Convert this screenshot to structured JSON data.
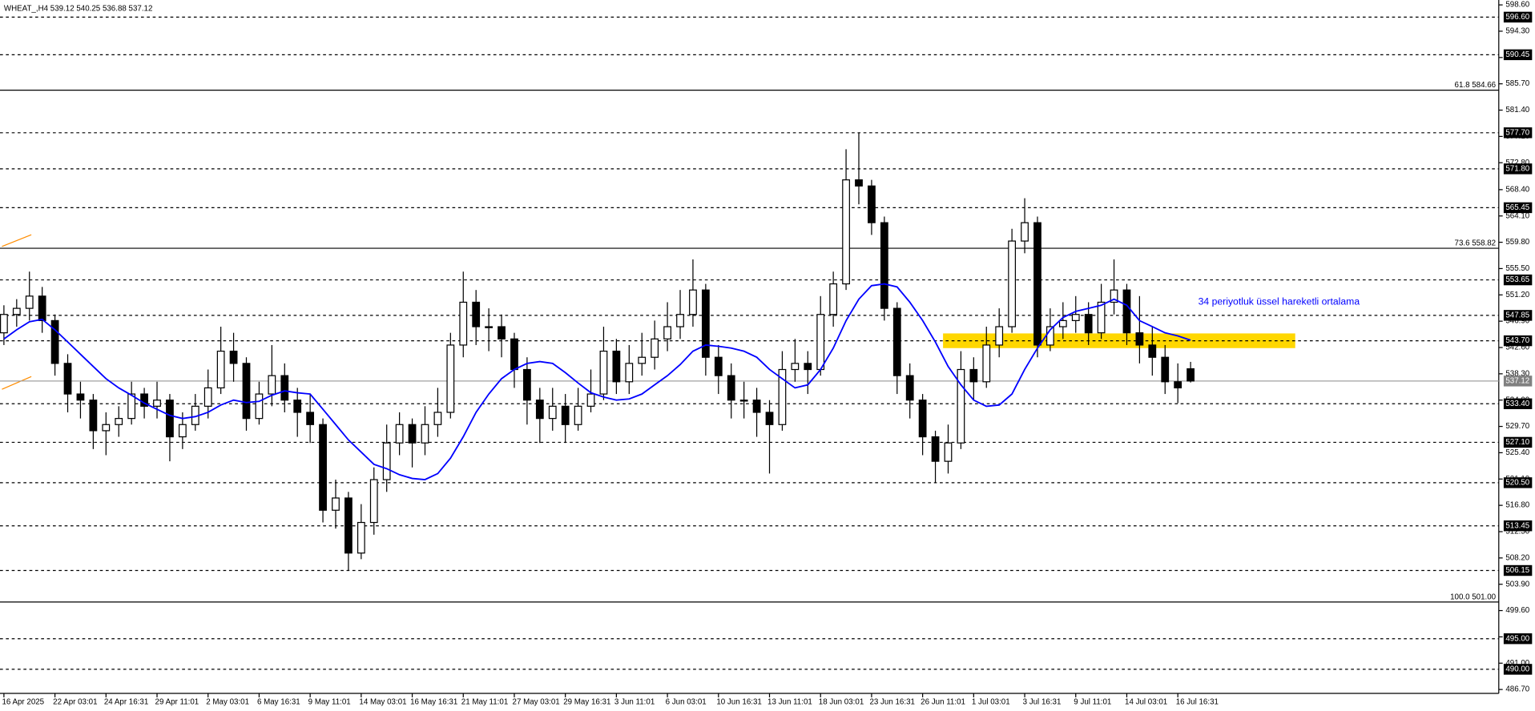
{
  "chart_data": {
    "type": "candlestick",
    "title": "WHEAT_,H4  539.12 540.25 536.88 537.12",
    "annotation": "34 periyotluk üssel hareketli ortalama",
    "xlim": [
      0,
      117
    ],
    "ylim": [
      486.7,
      598.6
    ],
    "xticks": [
      {
        "value": 0,
        "label": "16 Apr 2025"
      },
      {
        "value": 4,
        "label": "22 Apr 03:01"
      },
      {
        "value": 8,
        "label": "24 Apr 16:31"
      },
      {
        "value": 12,
        "label": "29 Apr 11:01"
      },
      {
        "value": 16,
        "label": "2 May 03:01"
      },
      {
        "value": 20,
        "label": "6 May 16:31"
      },
      {
        "value": 24,
        "label": "9 May 11:01"
      },
      {
        "value": 28,
        "label": "14 May 03:01"
      },
      {
        "value": 32,
        "label": "16 May 16:31"
      },
      {
        "value": 36,
        "label": "21 May 11:01"
      },
      {
        "value": 40,
        "label": "27 May 03:01"
      },
      {
        "value": 44,
        "label": "29 May 16:31"
      },
      {
        "value": 48,
        "label": "3 Jun 11:01"
      },
      {
        "value": 52,
        "label": "6 Jun 03:01"
      },
      {
        "value": 56,
        "label": "10 Jun 16:31"
      },
      {
        "value": 60,
        "label": "13 Jun 11:01"
      },
      {
        "value": 64,
        "label": "18 Jun 03:01"
      },
      {
        "value": 68,
        "label": "23 Jun 16:31"
      },
      {
        "value": 72,
        "label": "26 Jun 11:01"
      },
      {
        "value": 76,
        "label": "1 Jul 03:01"
      },
      {
        "value": 80,
        "label": "3 Jul 16:31"
      },
      {
        "value": 84,
        "label": "9 Jul 11:01"
      },
      {
        "value": 88,
        "label": "14 Jul 03:01"
      },
      {
        "value": 92,
        "label": "16 Jul 16:31"
      }
    ],
    "yticks": [
      {
        "value": 598.6,
        "label": "598.60"
      },
      {
        "value": 594.3,
        "label": "594.30"
      },
      {
        "value": 590.0,
        "label": "590.00"
      },
      {
        "value": 585.7,
        "label": "585.70"
      },
      {
        "value": 581.4,
        "label": "581.40"
      },
      {
        "value": 577.1,
        "label": "577.10"
      },
      {
        "value": 572.8,
        "label": "572.80"
      },
      {
        "value": 568.4,
        "label": "568.40"
      },
      {
        "value": 564.1,
        "label": "564.10"
      },
      {
        "value": 559.8,
        "label": "559.80"
      },
      {
        "value": 555.5,
        "label": "555.50"
      },
      {
        "value": 551.2,
        "label": "551.20"
      },
      {
        "value": 546.9,
        "label": "546.90"
      },
      {
        "value": 542.6,
        "label": "542.60"
      },
      {
        "value": 538.3,
        "label": "538.30"
      },
      {
        "value": 534.0,
        "label": "534.00"
      },
      {
        "value": 529.7,
        "label": "529.70"
      },
      {
        "value": 525.4,
        "label": "525.40"
      },
      {
        "value": 521.1,
        "label": "521.10"
      },
      {
        "value": 516.8,
        "label": "516.80"
      },
      {
        "value": 512.5,
        "label": "512.50"
      },
      {
        "value": 508.2,
        "label": "508.20"
      },
      {
        "value": 503.9,
        "label": "503.90"
      },
      {
        "value": 499.6,
        "label": "499.60"
      },
      {
        "value": 495.3,
        "label": "495.30"
      },
      {
        "value": 491.0,
        "label": "491.00"
      },
      {
        "value": 486.7,
        "label": "486.70"
      }
    ],
    "levels": [
      {
        "value": 596.6,
        "label": "596.60"
      },
      {
        "value": 590.45,
        "label": "590.45"
      },
      {
        "value": 577.7,
        "label": "577.70"
      },
      {
        "value": 571.8,
        "label": "571.80"
      },
      {
        "value": 565.45,
        "label": "565.45"
      },
      {
        "value": 553.65,
        "label": "553.65"
      },
      {
        "value": 547.85,
        "label": "547.85"
      },
      {
        "value": 543.7,
        "label": "543.70"
      },
      {
        "value": 533.4,
        "label": "533.40"
      },
      {
        "value": 527.1,
        "label": "527.10"
      },
      {
        "value": 520.5,
        "label": "520.50"
      },
      {
        "value": 513.45,
        "label": "513.45"
      },
      {
        "value": 506.15,
        "label": "506.15"
      },
      {
        "value": 495.0,
        "label": "495.00"
      },
      {
        "value": 490.0,
        "label": "490.00"
      }
    ],
    "fib_levels": [
      {
        "value": 584.66,
        "label": "61.8 584.66"
      },
      {
        "value": 558.82,
        "label": "73.6 558.82"
      },
      {
        "value": 501.0,
        "label": "100.0 501.00"
      }
    ],
    "last_price": {
      "value": 537.12,
      "label": "537.12"
    },
    "zone": {
      "color": "#ffd700",
      "y": [
        542.5,
        544.9
      ],
      "x": [
        73.6,
        101.2
      ]
    },
    "up_color": "#ffffff",
    "down_color": "#000000",
    "ohlc": [
      [
        545,
        549.5,
        543,
        548
      ],
      [
        548,
        550.5,
        546,
        549
      ],
      [
        549,
        555,
        547,
        551
      ],
      [
        551,
        552.5,
        545,
        547
      ],
      [
        547,
        548,
        538,
        540
      ],
      [
        540,
        541.5,
        532,
        535
      ],
      [
        535,
        537,
        531,
        534
      ],
      [
        534,
        535,
        526,
        529
      ],
      [
        529,
        532,
        525,
        530
      ],
      [
        530,
        533,
        528,
        531
      ],
      [
        531,
        537,
        530,
        535
      ],
      [
        535,
        536,
        531,
        533
      ],
      [
        533,
        537,
        531,
        534
      ],
      [
        534,
        535,
        524,
        528
      ],
      [
        528,
        532,
        526,
        530
      ],
      [
        530,
        535,
        529,
        533
      ],
      [
        533,
        539,
        531,
        536
      ],
      [
        536,
        546,
        535,
        542
      ],
      [
        542,
        545,
        537,
        540
      ],
      [
        540,
        541,
        529,
        531
      ],
      [
        531,
        537,
        530,
        535
      ],
      [
        535,
        543,
        533,
        538
      ],
      [
        538,
        540,
        532,
        534
      ],
      [
        534,
        536,
        528,
        532
      ],
      [
        532,
        535,
        527,
        530
      ],
      [
        530,
        531,
        514,
        516
      ],
      [
        516,
        521,
        513,
        518
      ],
      [
        518,
        519,
        506.15,
        509
      ],
      [
        509,
        517,
        508,
        514
      ],
      [
        514,
        523,
        512,
        521
      ],
      [
        521,
        530,
        519,
        527
      ],
      [
        527,
        532,
        525,
        530
      ],
      [
        530,
        531,
        523,
        527
      ],
      [
        527,
        533,
        525,
        530
      ],
      [
        530,
        536,
        528,
        532
      ],
      [
        532,
        545,
        531,
        543
      ],
      [
        543,
        555,
        541,
        550
      ],
      [
        550,
        552,
        543,
        546
      ],
      [
        546,
        549,
        542,
        546
      ],
      [
        546,
        548,
        541,
        544
      ],
      [
        544,
        545,
        536,
        539
      ],
      [
        539,
        541,
        530,
        534
      ],
      [
        534,
        536,
        527,
        531
      ],
      [
        531,
        536,
        529,
        533
      ],
      [
        533,
        535,
        527,
        530
      ],
      [
        530,
        536,
        529,
        533
      ],
      [
        533,
        539,
        532,
        535
      ],
      [
        535,
        546,
        534,
        542
      ],
      [
        542,
        544,
        535,
        537
      ],
      [
        537,
        543,
        535,
        540
      ],
      [
        540,
        545,
        538,
        541
      ],
      [
        541,
        547,
        539,
        544
      ],
      [
        544,
        550,
        542,
        546
      ],
      [
        546,
        552,
        544,
        548
      ],
      [
        548,
        557,
        546,
        552
      ],
      [
        552,
        553,
        538,
        541
      ],
      [
        541,
        543,
        535,
        538
      ],
      [
        538,
        540,
        531,
        534
      ],
      [
        534,
        537,
        531,
        534
      ],
      [
        534,
        536,
        528,
        532
      ],
      [
        532,
        534,
        522,
        530
      ],
      [
        530,
        542,
        529,
        539
      ],
      [
        539,
        544,
        537,
        540
      ],
      [
        540,
        542,
        535,
        539
      ],
      [
        539,
        551,
        538,
        548
      ],
      [
        548,
        555,
        546,
        553
      ],
      [
        553,
        575,
        552,
        570
      ],
      [
        570,
        577.7,
        566,
        569
      ],
      [
        569,
        570,
        561,
        563
      ],
      [
        563,
        564,
        547,
        549
      ],
      [
        549,
        550,
        535,
        538
      ],
      [
        538,
        540,
        531,
        534
      ],
      [
        534,
        535,
        525,
        528
      ],
      [
        528,
        529,
        520.5,
        524
      ],
      [
        524,
        530,
        522,
        527
      ],
      [
        527,
        542,
        526,
        539
      ],
      [
        539,
        541,
        534,
        537
      ],
      [
        537,
        546,
        536,
        543
      ],
      [
        543,
        549,
        541,
        546
      ],
      [
        546,
        562,
        545,
        560
      ],
      [
        560,
        567,
        558,
        563
      ],
      [
        563,
        564,
        541,
        543
      ],
      [
        543,
        549,
        542,
        546
      ],
      [
        546,
        550,
        544,
        547
      ],
      [
        547,
        551,
        545,
        548
      ],
      [
        548,
        550,
        543,
        545
      ],
      [
        545,
        553,
        544,
        550
      ],
      [
        550,
        557,
        548,
        552
      ],
      [
        552,
        553,
        543,
        545
      ],
      [
        545,
        551,
        540,
        543
      ],
      [
        543,
        546,
        538,
        541
      ],
      [
        541,
        543,
        535,
        537
      ],
      [
        537,
        540,
        533.5,
        536
      ],
      [
        539.12,
        540.25,
        536.88,
        537.12
      ]
    ],
    "ema": {
      "color": "#0000ff",
      "values": [
        544.0,
        545.5,
        546.8,
        547.2,
        545.5,
        543.5,
        541.5,
        539.5,
        537.5,
        536.0,
        534.8,
        533.5,
        532.5,
        531.5,
        531.0,
        531.3,
        532.0,
        533.2,
        534.0,
        533.6,
        533.8,
        534.8,
        535.5,
        535.2,
        535.0,
        532.5,
        530.0,
        527.5,
        525.5,
        523.5,
        522.8,
        521.8,
        521.2,
        521.0,
        522.0,
        524.5,
        528.0,
        532.0,
        535.0,
        537.5,
        539.0,
        540.0,
        540.3,
        540.0,
        538.5,
        536.8,
        535.2,
        534.5,
        534.0,
        534.2,
        535.0,
        536.5,
        538.0,
        539.8,
        542.0,
        543.0,
        542.8,
        542.5,
        542.0,
        541.0,
        539.0,
        537.5,
        536.0,
        536.5,
        539.0,
        542.5,
        547.0,
        550.5,
        552.7,
        553.0,
        552.5,
        550.0,
        547.0,
        543.5,
        539.5,
        536.5,
        534.0,
        533.0,
        533.2,
        535.0,
        539.0,
        542.5,
        545.5,
        547.5,
        548.5,
        549.0,
        549.5,
        550.5,
        549.5,
        547.0,
        546.0,
        545.0,
        544.5,
        543.8
      ]
    }
  }
}
